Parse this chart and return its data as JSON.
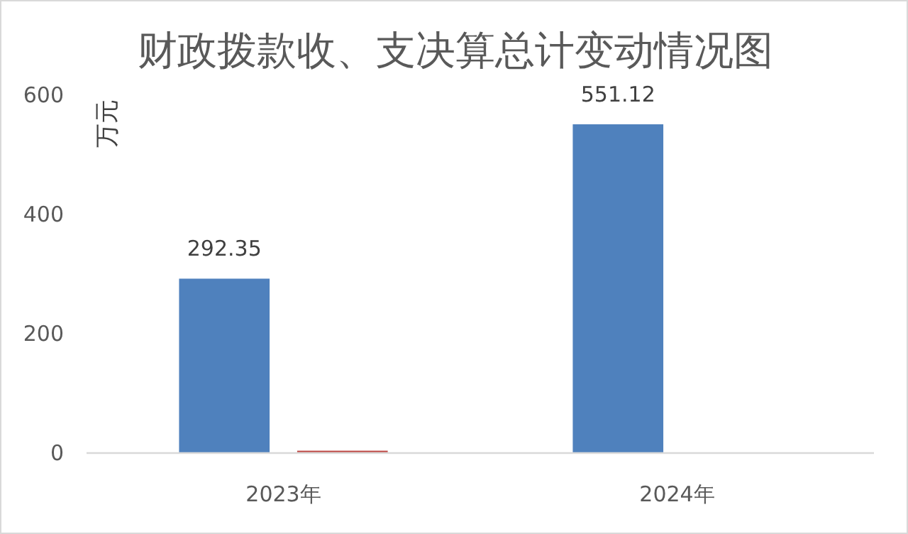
{
  "chart_data": {
    "type": "bar",
    "title": "财政拨款收、支决算总计变动情况图",
    "ylabel": "万元",
    "categories": [
      "2023年",
      "2024年"
    ],
    "series": [
      {
        "color": "#4f81bd",
        "values": [
          292.35,
          551.12
        ],
        "value_labels": [
          "292.35",
          "551.12"
        ]
      },
      {
        "color": "#c0504d",
        "values": [
          4,
          0
        ]
      }
    ],
    "ylim": [
      0,
      600
    ],
    "yticks": [
      0,
      200,
      400,
      600
    ],
    "grid": false
  }
}
